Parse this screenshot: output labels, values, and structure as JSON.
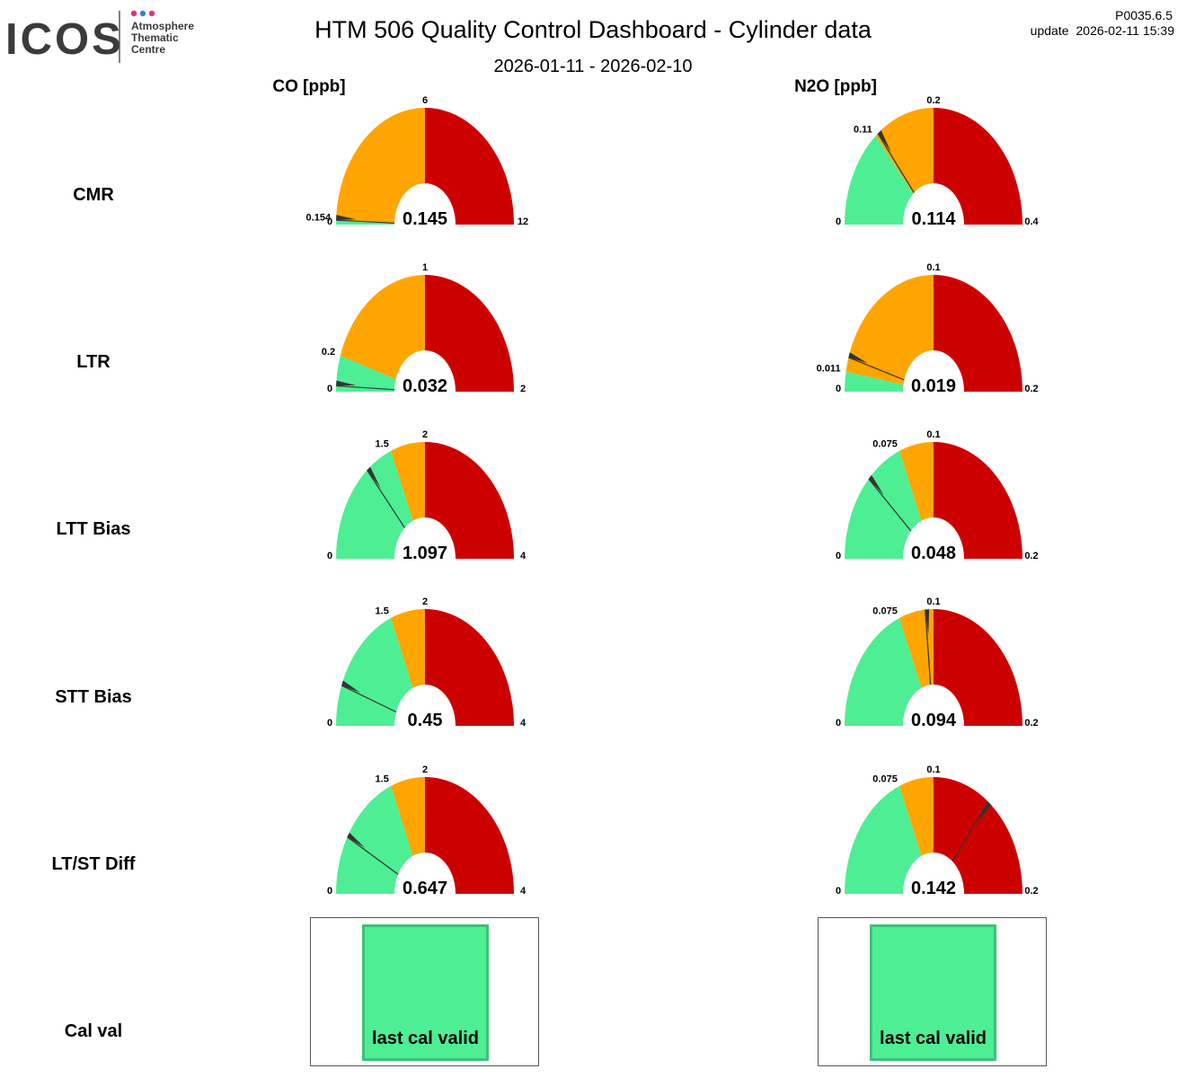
{
  "header": {
    "logo_text": "ICOS",
    "logo_subtitle": [
      "Atmosphere",
      "Thematic",
      "Centre"
    ],
    "logo_dot_colors": [
      "#e6307a",
      "#3b7fd4",
      "#e6307a"
    ],
    "title": "HTM 506 Quality Control Dashboard - Cylinder data",
    "date_range": "2026-01-11 - 2026-02-10",
    "version": "P0035.6.5",
    "update_label": "update",
    "update_time": "2026-02-11 15:39"
  },
  "columns": [
    "CO [ppb]",
    "N2O [ppb]"
  ],
  "rows": [
    "CMR",
    "LTR",
    "LTT Bias",
    "STT Bias",
    "LT/ST Diff",
    "Cal val"
  ],
  "colors": {
    "good": "#4eee94",
    "warning": "#ffa500",
    "bad": "#cd0000",
    "needle": "#333333"
  },
  "cal_val": [
    "last cal valid",
    "last cal valid"
  ],
  "chart_data": [
    {
      "type": "gauge",
      "row": "CMR",
      "column": "CO [ppb]",
      "min": 0,
      "max": 12,
      "green_max": 0.154,
      "orange_max": 6,
      "value": 0.145,
      "labels": {
        "min": "0",
        "max": "12",
        "green": "0.154",
        "orange": "6",
        "value": "0.145"
      }
    },
    {
      "type": "gauge",
      "row": "CMR",
      "column": "N2O [ppb]",
      "min": 0,
      "max": 0.4,
      "green_max": 0.11,
      "orange_max": 0.2,
      "value": 0.114,
      "labels": {
        "min": "0",
        "max": "0.4",
        "green": "0.11",
        "orange": "0.2",
        "value": "0.114"
      }
    },
    {
      "type": "gauge",
      "row": "LTR",
      "column": "CO [ppb]",
      "min": 0,
      "max": 2,
      "green_max": 0.2,
      "orange_max": 1,
      "value": 0.032,
      "labels": {
        "min": "0",
        "max": "2",
        "green": "0.2",
        "orange": "1",
        "value": "0.032"
      }
    },
    {
      "type": "gauge",
      "row": "LTR",
      "column": "N2O [ppb]",
      "min": 0,
      "max": 0.2,
      "green_max": 0.011,
      "orange_max": 0.1,
      "value": 0.019,
      "labels": {
        "min": "0",
        "max": "0.2",
        "green": "0.011",
        "orange": "0.1",
        "value": "0.019"
      }
    },
    {
      "type": "gauge",
      "row": "LTT Bias",
      "column": "CO [ppb]",
      "min": 0,
      "max": 4,
      "green_max": 1.5,
      "orange_max": 2,
      "value": 1.097,
      "labels": {
        "min": "0",
        "max": "4",
        "green": "1.5",
        "orange": "2",
        "value": "1.097"
      }
    },
    {
      "type": "gauge",
      "row": "LTT Bias",
      "column": "N2O [ppb]",
      "min": 0,
      "max": 0.2,
      "green_max": 0.075,
      "orange_max": 0.1,
      "value": 0.048,
      "labels": {
        "min": "0",
        "max": "0.2",
        "green": "0.075",
        "orange": "0.1",
        "value": "0.048"
      }
    },
    {
      "type": "gauge",
      "row": "STT Bias",
      "column": "CO [ppb]",
      "min": 0,
      "max": 4,
      "green_max": 1.5,
      "orange_max": 2,
      "value": 0.45,
      "labels": {
        "min": "0",
        "max": "4",
        "green": "1.5",
        "orange": "2",
        "value": "0.45"
      }
    },
    {
      "type": "gauge",
      "row": "STT Bias",
      "column": "N2O [ppb]",
      "min": 0,
      "max": 0.2,
      "green_max": 0.075,
      "orange_max": 0.1,
      "value": 0.094,
      "labels": {
        "min": "0",
        "max": "0.2",
        "green": "0.075",
        "orange": "0.1",
        "value": "0.094"
      }
    },
    {
      "type": "gauge",
      "row": "LT/ST Diff",
      "column": "CO [ppb]",
      "min": 0,
      "max": 4,
      "green_max": 1.5,
      "orange_max": 2,
      "value": 0.647,
      "labels": {
        "min": "0",
        "max": "4",
        "green": "1.5",
        "orange": "2",
        "value": "0.647"
      }
    },
    {
      "type": "gauge",
      "row": "LT/ST Diff",
      "column": "N2O [ppb]",
      "min": 0,
      "max": 0.2,
      "green_max": 0.075,
      "orange_max": 0.1,
      "value": 0.142,
      "labels": {
        "min": "0",
        "max": "0.2",
        "green": "0.075",
        "orange": "0.1",
        "value": "0.142"
      }
    }
  ]
}
